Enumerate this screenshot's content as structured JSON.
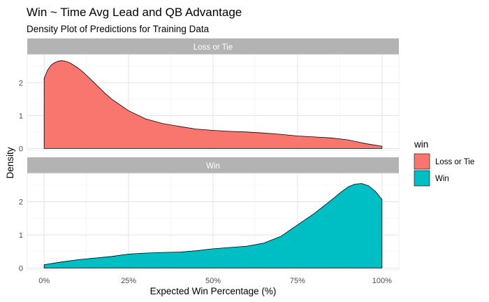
{
  "chart_data": {
    "type": "area",
    "title": "Win ~ Time Avg Lead and QB Advantage",
    "subtitle": "Density Plot of Predictions for Training Data",
    "xlabel": "Expected Win Percentage (%)",
    "ylabel": "Density",
    "xlim": [
      0,
      100
    ],
    "ylim": [
      0,
      2.8
    ],
    "x_ticks": [
      {
        "value": 0,
        "label": "0%"
      },
      {
        "value": 25,
        "label": "25%"
      },
      {
        "value": 50,
        "label": "50%"
      },
      {
        "value": 75,
        "label": "75%"
      },
      {
        "value": 100,
        "label": "100%"
      }
    ],
    "y_ticks": [
      {
        "value": 0,
        "label": "0"
      },
      {
        "value": 1,
        "label": "1"
      },
      {
        "value": 2,
        "label": "2"
      }
    ],
    "grid": true,
    "legend": {
      "title": "win",
      "position": "right",
      "entries": [
        {
          "label": "Loss or Tie",
          "color": "#f8766d"
        },
        {
          "label": "Win",
          "color": "#00bfc4"
        }
      ]
    },
    "facets": [
      {
        "strip_label": "Loss or Tie",
        "color": "#f8766d",
        "x": [
          0,
          1,
          2,
          3,
          4,
          5,
          6,
          7,
          8,
          10,
          12,
          15,
          18,
          20,
          25,
          30,
          35,
          40,
          45,
          50,
          55,
          60,
          65,
          70,
          75,
          80,
          85,
          90,
          95,
          100
        ],
        "y": [
          2.13,
          2.38,
          2.53,
          2.6,
          2.65,
          2.67,
          2.66,
          2.63,
          2.58,
          2.45,
          2.28,
          1.98,
          1.68,
          1.5,
          1.15,
          0.9,
          0.76,
          0.67,
          0.59,
          0.55,
          0.52,
          0.5,
          0.47,
          0.43,
          0.38,
          0.35,
          0.32,
          0.26,
          0.15,
          0.07
        ]
      },
      {
        "strip_label": "Win",
        "color": "#00bfc4",
        "x": [
          0,
          5,
          10,
          15,
          20,
          25,
          30,
          35,
          40,
          45,
          50,
          55,
          60,
          65,
          70,
          75,
          80,
          85,
          88,
          90,
          92,
          94,
          96,
          98,
          100
        ],
        "y": [
          0.1,
          0.18,
          0.25,
          0.3,
          0.35,
          0.42,
          0.45,
          0.47,
          0.48,
          0.52,
          0.58,
          0.62,
          0.66,
          0.75,
          0.95,
          1.3,
          1.65,
          2.05,
          2.3,
          2.45,
          2.53,
          2.55,
          2.48,
          2.32,
          2.07
        ]
      }
    ]
  }
}
